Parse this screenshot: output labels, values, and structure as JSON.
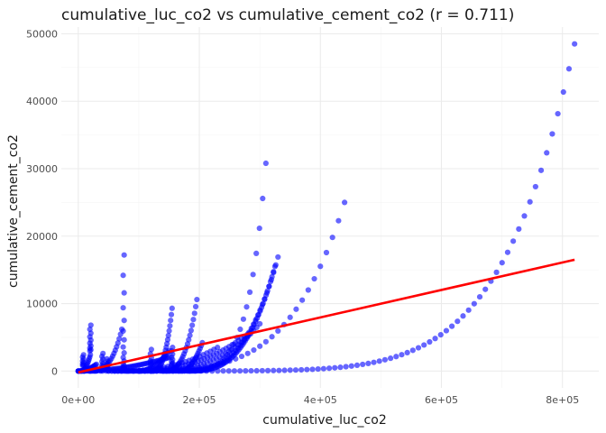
{
  "chart_data": {
    "type": "scatter",
    "title": "cumulative_luc_co2 vs cumulative_cement_co2 (r = 0.711)",
    "xlabel": "cumulative_luc_co2",
    "ylabel": "cumulative_cement_co2",
    "xlim": [
      -28000,
      860000
    ],
    "ylim": [
      -2500,
      51000
    ],
    "x_ticks": [
      0,
      200000,
      400000,
      600000,
      800000
    ],
    "x_tick_labels": [
      "0e+00",
      "2e+05",
      "4e+05",
      "6e+05",
      "8e+05"
    ],
    "y_ticks": [
      0,
      10000,
      20000,
      30000,
      40000,
      50000
    ],
    "y_tick_labels": [
      "0",
      "10000",
      "20000",
      "30000",
      "40000",
      "50000"
    ],
    "grid": true,
    "point_color": "#0000ff",
    "line_color": "#ff0000",
    "regression_line": {
      "x": [
        0,
        820000
      ],
      "y": [
        -200,
        16500
      ]
    },
    "curves": [
      {
        "n": 90,
        "xs": 0,
        "xe": 820000,
        "ye": 48500,
        "p": 7
      },
      {
        "n": 45,
        "xs": 0,
        "xe": 440000,
        "ye": 25000,
        "p": 5
      },
      {
        "n": 50,
        "xs": 150000,
        "xe": 330000,
        "ye": 16900,
        "p": 3.5
      },
      {
        "n": 50,
        "xs": 50000,
        "xe": 310000,
        "ye": 30800,
        "p": 9
      },
      {
        "n": 60,
        "xs": 180000,
        "xe": 325000,
        "ye": 15500,
        "p": 3
      },
      {
        "n": 40,
        "xs": 100000,
        "xe": 300000,
        "ye": 7000,
        "p": 3
      },
      {
        "n": 40,
        "xs": 80000,
        "xe": 280000,
        "ye": 5500,
        "p": 2.5
      },
      {
        "n": 30,
        "xs": 60000,
        "xe": 230000,
        "ye": 3500,
        "p": 2.5
      },
      {
        "n": 30,
        "xs": 140000,
        "xe": 196000,
        "ye": 10600,
        "p": 3
      },
      {
        "n": 30,
        "xs": 120000,
        "xe": 155000,
        "ye": 9300,
        "p": 3
      },
      {
        "n": 20,
        "xs": 170000,
        "xe": 205000,
        "ye": 4200,
        "p": 2
      },
      {
        "n": 25,
        "xs": 20000,
        "xe": 72000,
        "ye": 6200,
        "p": 3
      },
      {
        "n": 60,
        "xs": 0,
        "xe": 150000,
        "ye": 2000,
        "p": 2
      },
      {
        "n": 25,
        "xs": 100000,
        "xe": 150000,
        "ye": 3000,
        "p": 2
      },
      {
        "n": 15,
        "xs": 5000,
        "xe": 20000,
        "ye": 2400,
        "p": 2
      },
      {
        "n": 20,
        "xs": 0,
        "xe": 30000,
        "ye": 1000,
        "p": 2
      }
    ],
    "vertical_clusters": [
      {
        "x": 75000,
        "n": 22,
        "y_start": 200,
        "y_end": 17200,
        "p": 4
      },
      {
        "x": 20000,
        "n": 10,
        "y_start": 3000,
        "y_end": 6800,
        "p": 1.5
      },
      {
        "x": 8000,
        "n": 8,
        "y_start": 800,
        "y_end": 2400,
        "p": 1.5
      },
      {
        "x": 40000,
        "n": 8,
        "y_start": 500,
        "y_end": 2600,
        "p": 1.5
      },
      {
        "x": 120000,
        "n": 6,
        "y_start": 900,
        "y_end": 3200,
        "p": 1.5
      },
      {
        "x": 48000,
        "n": 7,
        "y_start": 300,
        "y_end": 1800,
        "p": 1.5
      },
      {
        "x": 155000,
        "n": 8,
        "y_start": 1000,
        "y_end": 3500,
        "p": 1.5
      }
    ]
  }
}
